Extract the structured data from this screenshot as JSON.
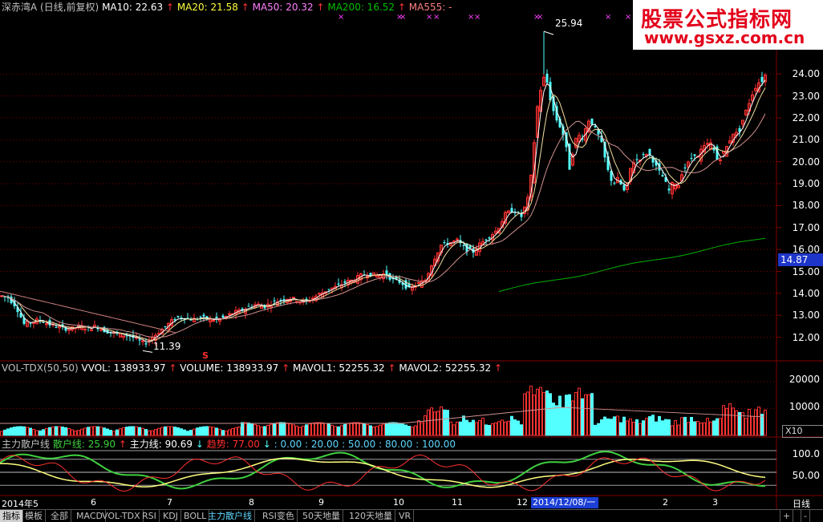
{
  "main_header": {
    "name": "深赤湾A",
    "period": "(日线,前复权)",
    "ma10": "MA10: 22.63",
    "ma20": "MA20: 21.58",
    "ma50": "MA50: 20.32",
    "ma200": "MA200: 16.52",
    "ma555": "MA555: -",
    "arrow_up": "↑"
  },
  "colors": {
    "up": "#ff3232",
    "down": "#54ffff",
    "ma10": "#ffffff",
    "ma20": "#ffff00",
    "ma50": "#ff80ff",
    "ma200": "#00b000",
    "grid": "#800000",
    "retail": "#3fd03f",
    "main_force": "#ffffff",
    "trend": "#ff3030"
  },
  "price_axis": {
    "ticks": [
      "24.00",
      "23.00",
      "22.00",
      "21.00",
      "20.00",
      "19.00",
      "18.00",
      "17.00",
      "16.00",
      "15.00",
      "14.00",
      "13.00",
      "12.00"
    ],
    "current": "14.87",
    "high_label": "25.94",
    "low_label": "11.39",
    "signal_s": "S"
  },
  "volume_header": {
    "name": "VOL-TDX(50,50)",
    "vol": "VVOL: 138933.97",
    "volume": "VOLUME: 138933.97",
    "mavol1": "MAVOL1: 52255.32",
    "mavol2": "MAVOL2: 52255.32",
    "arrow_up": "↑"
  },
  "volume_axis": {
    "ticks": [
      "20000",
      "10000"
    ],
    "multiplier": "X10"
  },
  "indicator_header": {
    "name": "主力散户线",
    "retail": "散户线: 25.90",
    "main_force": "主力线: 90.69",
    "trend": "趋势: 77.00",
    "levels": ": 0.00 : 20.00 : 50.00 : 80.00 : 100.00",
    "arrow_up": "↑",
    "arrow_down": "↓"
  },
  "indicator_axis": {
    "ticks": [
      "100.0",
      "50.00"
    ]
  },
  "time_axis": {
    "labels": [
      "2014年5",
      "6",
      "7",
      "8",
      "9",
      "10",
      "11",
      "12",
      "2",
      "3"
    ],
    "cursor_date": "2014/12/08/一",
    "period": "日线"
  },
  "tabs": [
    "指标",
    "模板",
    "全部",
    "MACD",
    "VOL-TDX",
    "RSI",
    "KDJ",
    "BOLL",
    "主力散户线",
    "RSI变色",
    "50天地量",
    "120天地量",
    "VR"
  ],
  "tab_controls": [
    "+",
    "-"
  ],
  "logo": {
    "line1": "股票公式指标网",
    "line2": "www.gsxz.com.cn"
  },
  "chart_data": {
    "type": "candlestick",
    "ylim": [
      11.0,
      26.2
    ],
    "grid": true,
    "price_points": [
      [
        0,
        13.9
      ],
      [
        10,
        13.8
      ],
      [
        20,
        13.4
      ],
      [
        30,
        12.6
      ],
      [
        40,
        12.7
      ],
      [
        50,
        12.8
      ],
      [
        60,
        12.6
      ],
      [
        70,
        12.5
      ],
      [
        80,
        12.4
      ],
      [
        90,
        12.4
      ],
      [
        100,
        12.5
      ],
      [
        110,
        12.4
      ],
      [
        120,
        12.5
      ],
      [
        130,
        12.3
      ],
      [
        140,
        12.2
      ],
      [
        150,
        12.1
      ],
      [
        160,
        12.1
      ],
      [
        170,
        11.9
      ],
      [
        180,
        11.7
      ],
      [
        190,
        12.0
      ],
      [
        200,
        12.3
      ],
      [
        210,
        12.6
      ],
      [
        220,
        12.9
      ],
      [
        230,
        12.9
      ],
      [
        240,
        12.8
      ],
      [
        250,
        12.9
      ],
      [
        260,
        12.8
      ],
      [
        270,
        12.8
      ],
      [
        280,
        12.9
      ],
      [
        290,
        13.1
      ],
      [
        300,
        13.2
      ],
      [
        310,
        13.4
      ],
      [
        320,
        13.5
      ],
      [
        330,
        13.4
      ],
      [
        340,
        13.6
      ],
      [
        350,
        13.7
      ],
      [
        360,
        13.8
      ],
      [
        370,
        13.7
      ],
      [
        380,
        13.6
      ],
      [
        390,
        13.8
      ],
      [
        400,
        14.0
      ],
      [
        410,
        14.2
      ],
      [
        420,
        14.3
      ],
      [
        430,
        14.5
      ],
      [
        440,
        14.6
      ],
      [
        450,
        14.8
      ],
      [
        460,
        14.9
      ],
      [
        470,
        14.8
      ],
      [
        480,
        14.9
      ],
      [
        490,
        14.6
      ],
      [
        500,
        14.5
      ],
      [
        510,
        14.2
      ],
      [
        520,
        14.4
      ],
      [
        530,
        14.6
      ],
      [
        540,
        15.5
      ],
      [
        550,
        16.2
      ],
      [
        560,
        16.3
      ],
      [
        570,
        16.4
      ],
      [
        580,
        16.0
      ],
      [
        590,
        15.9
      ],
      [
        600,
        16.3
      ],
      [
        610,
        16.6
      ],
      [
        620,
        16.9
      ],
      [
        630,
        17.6
      ],
      [
        640,
        17.8
      ],
      [
        650,
        17.5
      ],
      [
        660,
        18.5
      ],
      [
        665,
        20.5
      ],
      [
        670,
        22.5
      ],
      [
        675,
        23.5
      ],
      [
        680,
        24.0
      ],
      [
        685,
        23.0
      ],
      [
        690,
        22.3
      ],
      [
        695,
        21.8
      ],
      [
        700,
        21.5
      ],
      [
        705,
        20.8
      ],
      [
        710,
        19.7
      ],
      [
        715,
        20.6
      ],
      [
        720,
        21.3
      ],
      [
        725,
        21.0
      ],
      [
        730,
        21.5
      ],
      [
        735,
        22.0
      ],
      [
        740,
        21.6
      ],
      [
        745,
        21.3
      ],
      [
        750,
        20.8
      ],
      [
        755,
        20.0
      ],
      [
        760,
        19.3
      ],
      [
        765,
        19.0
      ],
      [
        770,
        19.2
      ],
      [
        775,
        18.9
      ],
      [
        780,
        18.5
      ],
      [
        785,
        19.6
      ],
      [
        790,
        20.0
      ],
      [
        795,
        20.1
      ],
      [
        800,
        20.2
      ],
      [
        805,
        20.4
      ],
      [
        810,
        20.3
      ],
      [
        815,
        20.0
      ],
      [
        820,
        19.6
      ],
      [
        825,
        19.4
      ],
      [
        830,
        19.0
      ],
      [
        835,
        18.6
      ],
      [
        840,
        19.2
      ],
      [
        845,
        18.8
      ],
      [
        850,
        19.5
      ],
      [
        855,
        19.8
      ],
      [
        860,
        20.0
      ],
      [
        865,
        20.4
      ],
      [
        870,
        20.2
      ],
      [
        875,
        20.6
      ],
      [
        880,
        20.7
      ],
      [
        885,
        20.9
      ],
      [
        890,
        20.5
      ],
      [
        895,
        20.0
      ],
      [
        900,
        20.3
      ],
      [
        905,
        20.6
      ],
      [
        910,
        21.0
      ],
      [
        915,
        21.4
      ],
      [
        920,
        21.2
      ],
      [
        925,
        21.8
      ],
      [
        930,
        22.3
      ],
      [
        935,
        22.8
      ],
      [
        940,
        23.3
      ],
      [
        945,
        23.6
      ],
      [
        950,
        23.7
      ],
      [
        955,
        24.0
      ]
    ],
    "volume_max": 20000,
    "indicator_ylim": [
      0,
      100
    ]
  }
}
